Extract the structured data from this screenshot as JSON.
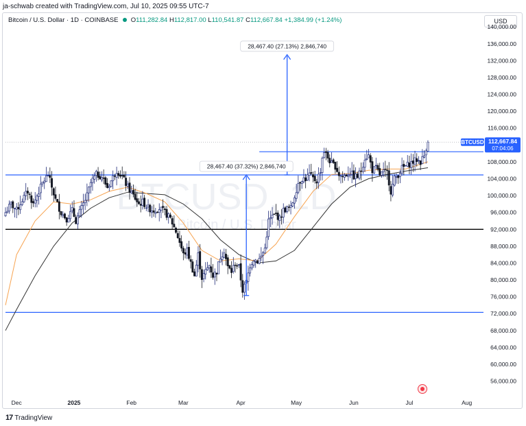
{
  "header": {
    "attribution": "ja-schwab created with TradingView.com, Jul 10, 2025 09:55 UTC-7"
  },
  "symbol_bar": {
    "name": "Bitcoin / U.S. Dollar · 1D · COINBASE",
    "open_label": "O",
    "open": "111,282.84",
    "high_label": "H",
    "high": "112,817.00",
    "low_label": "L",
    "low": "110,541.87",
    "close_label": "C",
    "close": "112,667.84",
    "change": "+1,384.99 (+1.24%)"
  },
  "currency": "USD",
  "watermark": {
    "ticker": "BTCUSD, 1D",
    "name": "Bitcoin / U.S. Dollar"
  },
  "price_tag": {
    "symbol": "BTCUSD",
    "price": "112,667.84",
    "countdown": "07:04:06"
  },
  "measure_labels": {
    "upper": "28,467.40 (27.13%) 2,846,740",
    "lower": "28,467.40 (37.32%) 2,846,740"
  },
  "footer": {
    "logo": "17",
    "brand": "TradingView"
  },
  "colors": {
    "up": "#1e2a78",
    "down": "#131722",
    "blue_lines": "#2962ff",
    "support_black": "#000000",
    "ema_orange": "#f7a350",
    "sma_dark": "#333333",
    "measure": "#5b9bd5"
  },
  "chart_data": {
    "type": "candlestick",
    "symbol": "BTCUSD",
    "timeframe": "1D",
    "y_axis": {
      "ticks": [
        140000,
        136000,
        132000,
        128000,
        124000,
        120000,
        116000,
        112000,
        108000,
        104000,
        100000,
        96000,
        92000,
        88000,
        84000,
        80000,
        76000,
        72000,
        68000,
        64000,
        60000,
        56000
      ],
      "tick_labels": [
        "140,000.00",
        "136,000.00",
        "132,000.00",
        "128,000.00",
        "124,000.00",
        "120,000.00",
        "116,000.00",
        "112,000.00",
        "108,000.00",
        "104,000.00",
        "100,000.00",
        "96,000.00",
        "92,000.00",
        "88,000.00",
        "84,000.00",
        "80,000.00",
        "76,000.00",
        "72,000.00",
        "68,000.00",
        "64,000.00",
        "60,000.00",
        "56,000.00"
      ],
      "range": [
        53000,
        141500
      ]
    },
    "x_axis": {
      "labels": [
        "Dec",
        "2025",
        "Feb",
        "Mar",
        "Apr",
        "May",
        "Jun",
        "Jul",
        "Aug"
      ],
      "label_days": [
        0,
        31,
        62,
        90,
        121,
        151,
        182,
        212,
        243
      ],
      "range_days": [
        -6,
        252
      ],
      "start_date": "2024-12-01"
    },
    "horizontal_lines": [
      {
        "name": "resistance-upper",
        "value": 110400,
        "x_from_day": 131,
        "x_to_day": 252,
        "color": "#2962ff"
      },
      {
        "name": "resistance-mid",
        "value": 104900,
        "x_from_day": -6,
        "x_to_day": 252,
        "color": "#2962ff"
      },
      {
        "name": "support-black",
        "value": 92000,
        "x_from_day": -6,
        "x_to_day": 252,
        "color": "#000000"
      },
      {
        "name": "support-lower",
        "value": 72300,
        "x_from_day": -6,
        "x_to_day": 252,
        "color": "#2962ff"
      }
    ],
    "measures": [
      {
        "name": "upper",
        "x_day": 146,
        "from": 104900,
        "to": 133400,
        "label": "28,467.40 (27.13%) 2,846,740"
      },
      {
        "name": "lower",
        "x_day": 124,
        "from": 76300,
        "to": 104900,
        "label": "28,467.40 (37.32%) 2,846,740"
      }
    ],
    "keypoints": [
      [
        -6,
        96000
      ],
      [
        -3,
        98000
      ],
      [
        0,
        96500
      ],
      [
        3,
        99000
      ],
      [
        6,
        101000
      ],
      [
        9,
        98000
      ],
      [
        11,
        100000
      ],
      [
        14,
        103000
      ],
      [
        17,
        105000
      ],
      [
        19,
        102000
      ],
      [
        21,
        99000
      ],
      [
        24,
        96000
      ],
      [
        27,
        94500
      ],
      [
        30,
        96500
      ],
      [
        32,
        94000
      ],
      [
        35,
        97000
      ],
      [
        38,
        100000
      ],
      [
        40,
        103000
      ],
      [
        43,
        105000
      ],
      [
        46,
        104500
      ],
      [
        49,
        102000
      ],
      [
        51,
        103500
      ],
      [
        54,
        106000
      ],
      [
        57,
        104500
      ],
      [
        60,
        102000
      ],
      [
        63,
        100000
      ],
      [
        66,
        98000
      ],
      [
        68,
        98500
      ],
      [
        71,
        97000
      ],
      [
        74,
        96500
      ],
      [
        77,
        97000
      ],
      [
        80,
        96000
      ],
      [
        83,
        94500
      ],
      [
        86,
        91500
      ],
      [
        88,
        89000
      ],
      [
        90,
        86000
      ],
      [
        92,
        87000
      ],
      [
        94,
        84000
      ],
      [
        96,
        81000
      ],
      [
        98,
        86000
      ],
      [
        100,
        80500
      ],
      [
        102,
        82000
      ],
      [
        104,
        83500
      ],
      [
        106,
        81000
      ],
      [
        108,
        82000
      ],
      [
        110,
        85500
      ],
      [
        112,
        87000
      ],
      [
        114,
        83000
      ],
      [
        116,
        82000
      ],
      [
        118,
        84000
      ],
      [
        120,
        83000
      ],
      [
        122,
        77500
      ],
      [
        124,
        79500
      ],
      [
        126,
        83500
      ],
      [
        128,
        85000
      ],
      [
        130,
        84500
      ],
      [
        132,
        85500
      ],
      [
        134,
        87500
      ],
      [
        136,
        94000
      ],
      [
        138,
        95000
      ],
      [
        140,
        95500
      ],
      [
        142,
        94500
      ],
      [
        144,
        96500
      ],
      [
        146,
        97000
      ],
      [
        148,
        97000
      ],
      [
        150,
        100000
      ],
      [
        152,
        103000
      ],
      [
        154,
        104000
      ],
      [
        156,
        104000
      ],
      [
        158,
        105000
      ],
      [
        160,
        104000
      ],
      [
        162,
        103500
      ],
      [
        164,
        106000
      ],
      [
        165,
        109000
      ],
      [
        166,
        110500
      ],
      [
        168,
        109000
      ],
      [
        170,
        107500
      ],
      [
        172,
        107000
      ],
      [
        174,
        105000
      ],
      [
        176,
        104500
      ],
      [
        178,
        105000
      ],
      [
        180,
        105500
      ],
      [
        182,
        104500
      ],
      [
        184,
        104500
      ],
      [
        186,
        106000
      ],
      [
        188,
        109000
      ],
      [
        190,
        109500
      ],
      [
        192,
        106000
      ],
      [
        194,
        106500
      ],
      [
        196,
        105000
      ],
      [
        198,
        105500
      ],
      [
        200,
        105500
      ],
      [
        202,
        101000
      ],
      [
        204,
        104000
      ],
      [
        206,
        105000
      ],
      [
        208,
        106500
      ],
      [
        210,
        107000
      ],
      [
        212,
        107500
      ],
      [
        214,
        108000
      ],
      [
        216,
        108500
      ],
      [
        218,
        108000
      ],
      [
        220,
        109500
      ],
      [
        221,
        111300
      ],
      [
        222,
        112668
      ]
    ],
    "ema_orange": [
      [
        -6,
        74000
      ],
      [
        0,
        86000
      ],
      [
        10,
        94000
      ],
      [
        20,
        98500
      ],
      [
        30,
        98000
      ],
      [
        40,
        99000
      ],
      [
        50,
        101000
      ],
      [
        60,
        102000
      ],
      [
        70,
        100500
      ],
      [
        80,
        98500
      ],
      [
        90,
        93500
      ],
      [
        100,
        87000
      ],
      [
        110,
        84500
      ],
      [
        120,
        85000
      ],
      [
        130,
        84500
      ],
      [
        140,
        88500
      ],
      [
        150,
        95000
      ],
      [
        160,
        101000
      ],
      [
        170,
        105000
      ],
      [
        180,
        105200
      ],
      [
        190,
        106000
      ],
      [
        200,
        106300
      ],
      [
        210,
        106300
      ],
      [
        222,
        108000
      ]
    ],
    "sma_dark": [
      [
        -6,
        68000
      ],
      [
        0,
        73000
      ],
      [
        10,
        81000
      ],
      [
        20,
        88000
      ],
      [
        30,
        93500
      ],
      [
        40,
        97000
      ],
      [
        50,
        99500
      ],
      [
        60,
        100800
      ],
      [
        70,
        100500
      ],
      [
        80,
        100200
      ],
      [
        90,
        98000
      ],
      [
        100,
        94500
      ],
      [
        110,
        89500
      ],
      [
        120,
        86000
      ],
      [
        130,
        84000
      ],
      [
        140,
        84500
      ],
      [
        150,
        87000
      ],
      [
        160,
        92500
      ],
      [
        170,
        98000
      ],
      [
        180,
        102000
      ],
      [
        190,
        104000
      ],
      [
        200,
        105000
      ],
      [
        210,
        105800
      ],
      [
        222,
        106600
      ]
    ],
    "last_price": 112667.84
  }
}
